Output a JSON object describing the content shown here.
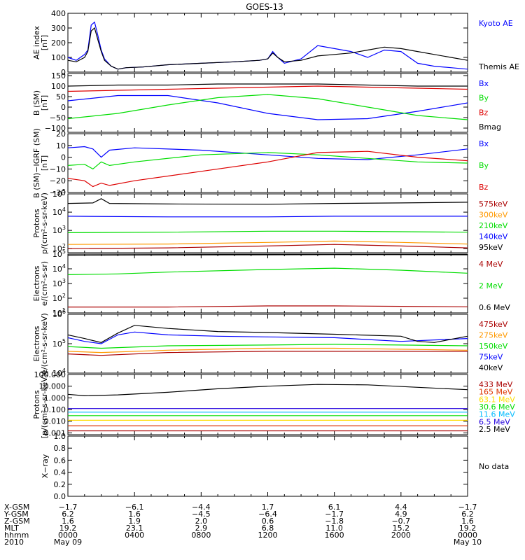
{
  "title": "GOES-13",
  "chart_data": [
    {
      "type": "line",
      "ylabel": [
        "AE index",
        "[nT]"
      ],
      "ylim": [
        0,
        400
      ],
      "yscale": "linear",
      "yticks": [
        {
          "v": 0,
          "label": "0"
        },
        {
          "v": 100,
          "label": "100"
        },
        {
          "v": 200,
          "label": "200"
        },
        {
          "v": 300,
          "label": "300"
        },
        {
          "v": 400,
          "label": "400"
        }
      ],
      "series": [
        {
          "name": "Kyoto AE",
          "color": "#0000ff",
          "x": [
            0,
            0.5,
            1,
            1.2,
            1.4,
            1.6,
            1.8,
            2.0,
            2.2,
            2.6,
            3.0,
            3.5,
            4.5,
            6,
            8,
            10,
            11.5,
            12,
            12.3,
            12.6,
            13,
            14,
            15,
            16,
            17,
            18,
            19,
            20,
            21,
            22,
            23,
            24
          ],
          "y": [
            100,
            80,
            120,
            150,
            320,
            340,
            250,
            150,
            90,
            40,
            20,
            30,
            35,
            50,
            60,
            70,
            80,
            90,
            140,
            100,
            60,
            90,
            180,
            160,
            140,
            100,
            150,
            140,
            60,
            40,
            30,
            20
          ]
        },
        {
          "name": "Themis AE",
          "color": "#000000",
          "x": [
            0,
            0.5,
            1,
            1.2,
            1.4,
            1.6,
            1.8,
            2.0,
            2.2,
            2.6,
            3.0,
            3.5,
            4.5,
            6,
            8,
            10,
            11.5,
            12,
            12.3,
            12.6,
            13,
            14,
            15,
            16,
            17,
            18,
            19,
            20,
            21,
            22,
            23,
            24
          ],
          "y": [
            80,
            70,
            100,
            140,
            280,
            300,
            220,
            140,
            80,
            40,
            20,
            30,
            35,
            50,
            60,
            70,
            80,
            90,
            130,
            100,
            70,
            80,
            110,
            120,
            130,
            150,
            170,
            160,
            140,
            120,
            100,
            80
          ]
        }
      ]
    },
    {
      "type": "line",
      "ylabel": [
        "B (SM)",
        "[nT]"
      ],
      "ylim": [
        -120,
        160
      ],
      "yscale": "linear",
      "yticks": [
        {
          "v": -100,
          "label": "−100"
        },
        {
          "v": -50,
          "label": "−50"
        },
        {
          "v": 0,
          "label": "0"
        },
        {
          "v": 50,
          "label": "50"
        },
        {
          "v": 100,
          "label": "100"
        },
        {
          "v": 150,
          "label": "150"
        }
      ],
      "series": [
        {
          "name": "Bx",
          "color": "#0000ff",
          "x": [
            0,
            3,
            6,
            9,
            12,
            15,
            18,
            21,
            24
          ],
          "y": [
            30,
            55,
            55,
            20,
            -30,
            -60,
            -55,
            -20,
            20
          ]
        },
        {
          "name": "By",
          "color": "#00dd00",
          "x": [
            0,
            3,
            6,
            9,
            12,
            15,
            18,
            21,
            24
          ],
          "y": [
            -55,
            -30,
            10,
            45,
            60,
            40,
            0,
            -40,
            -60
          ]
        },
        {
          "name": "Bz",
          "color": "#dd0000",
          "x": [
            0,
            3,
            6,
            9,
            12,
            15,
            18,
            21,
            24
          ],
          "y": [
            75,
            80,
            85,
            90,
            95,
            100,
            95,
            90,
            85
          ]
        },
        {
          "name": "Bmag",
          "color": "#000000",
          "x": [
            0,
            3,
            6,
            9,
            12,
            15,
            18,
            21,
            24
          ],
          "y": [
            100,
            105,
            105,
            110,
            110,
            110,
            105,
            100,
            100
          ]
        }
      ]
    },
    {
      "type": "line",
      "ylabel": [
        "B (SM)−IGRF (SM)",
        "[nT]"
      ],
      "ylim": [
        -30,
        20
      ],
      "yscale": "linear",
      "yticks": [
        {
          "v": -30,
          "label": "−30"
        },
        {
          "v": -20,
          "label": "−20"
        },
        {
          "v": -10,
          "label": "−10"
        },
        {
          "v": 0,
          "label": "0"
        },
        {
          "v": 10,
          "label": "10"
        },
        {
          "v": 20,
          "label": "20"
        }
      ],
      "series": [
        {
          "name": "Bx",
          "color": "#0000ff",
          "x": [
            0,
            1,
            1.5,
            2,
            2.5,
            4,
            8,
            12,
            15,
            18,
            21,
            24
          ],
          "y": [
            8,
            9,
            7,
            0,
            6,
            8,
            6,
            2,
            -1,
            -2,
            2,
            7
          ]
        },
        {
          "name": "By",
          "color": "#00dd00",
          "x": [
            0,
            1,
            1.5,
            2,
            2.5,
            4,
            8,
            12,
            15,
            18,
            21,
            24
          ],
          "y": [
            -7,
            -6,
            -10,
            -4,
            -7,
            -4,
            2,
            4,
            2,
            -1,
            -4,
            -5
          ]
        },
        {
          "name": "Bz",
          "color": "#dd0000",
          "x": [
            0,
            1,
            1.5,
            2,
            2.5,
            4,
            8,
            12,
            15,
            18,
            21,
            24
          ],
          "y": [
            -18,
            -20,
            -25,
            -22,
            -24,
            -20,
            -12,
            -4,
            4,
            5,
            0,
            -3
          ]
        }
      ]
    },
    {
      "type": "line",
      "ylabel": [
        "Protons",
        "p/(cm²-s-sr-keV)"
      ],
      "ylim": [
        60,
        100000
      ],
      "yscale": "log",
      "yticks": [
        {
          "v": 100,
          "label": "10",
          "exp": "2"
        },
        {
          "v": 1000,
          "label": "10",
          "exp": "3"
        },
        {
          "v": 10000,
          "label": "10",
          "exp": "4"
        },
        {
          "v": 100000,
          "label": "10",
          "exp": "5"
        }
      ],
      "series": [
        {
          "name": "575keV",
          "color": "#aa0000",
          "x": [
            0,
            6,
            12,
            16,
            20,
            24
          ],
          "y": [
            100,
            110,
            140,
            170,
            140,
            110
          ]
        },
        {
          "name": "300keV",
          "color": "#ff9900",
          "x": [
            0,
            6,
            12,
            16,
            20,
            24
          ],
          "y": [
            170,
            180,
            220,
            260,
            220,
            180
          ]
        },
        {
          "name": "210keV",
          "color": "#00dd00",
          "x": [
            0,
            6,
            12,
            16,
            20,
            24
          ],
          "y": [
            750,
            800,
            900,
            900,
            850,
            800
          ]
        },
        {
          "name": "140keV",
          "color": "#0000ff",
          "x": [
            0,
            6,
            12,
            16,
            20,
            24
          ],
          "y": [
            6000,
            5500,
            5500,
            6000,
            6000,
            6000
          ]
        },
        {
          "name": "95keV",
          "color": "#000000",
          "x": [
            0,
            1.5,
            2,
            2.5,
            6,
            12,
            16,
            20,
            24
          ],
          "y": [
            30000,
            32000,
            55000,
            30000,
            28000,
            27000,
            30000,
            32000,
            35000
          ]
        }
      ]
    },
    {
      "type": "line",
      "ylabel": [
        "Electrons",
        "e/(cm²-s-sr)"
      ],
      "ylim": [
        10,
        100000
      ],
      "yscale": "log",
      "yticks": [
        {
          "v": 10,
          "label": "10",
          "exp": "1"
        },
        {
          "v": 100,
          "label": "10",
          "exp": "2"
        },
        {
          "v": 1000,
          "label": "10",
          "exp": "3"
        },
        {
          "v": 10000,
          "label": "10",
          "exp": "4"
        },
        {
          "v": 100000,
          "label": "10",
          "exp": "5"
        }
      ],
      "series": [
        {
          "name": "4 MeV",
          "color": "#aa0000",
          "x": [
            0,
            6,
            12,
            16,
            20,
            24
          ],
          "y": [
            25,
            25,
            30,
            30,
            28,
            26
          ]
        },
        {
          "name": "2 MeV",
          "color": "#00dd00",
          "x": [
            0,
            3,
            6,
            12,
            16,
            20,
            24
          ],
          "y": [
            4000,
            4500,
            6000,
            9000,
            11000,
            8000,
            5000
          ]
        },
        {
          "name": "0.6 MeV",
          "color": "#000000",
          "x": [
            0,
            6,
            12,
            16,
            20,
            24
          ],
          "y": [
            85000,
            88000,
            90000,
            92000,
            92000,
            90000
          ]
        }
      ]
    },
    {
      "type": "line",
      "ylabel": [
        "Electrons",
        "e/(cm²-s-sr-keV)"
      ],
      "ylim": [
        10000,
        1000000
      ],
      "yscale": "log",
      "yticks": [
        {
          "v": 10000,
          "label": "10",
          "exp": "4"
        },
        {
          "v": 100000,
          "label": "10",
          "exp": "5"
        },
        {
          "v": 1000000,
          "label": "10",
          "exp": "6"
        }
      ],
      "series": [
        {
          "name": "475keV",
          "color": "#aa0000",
          "x": [
            0,
            2,
            6,
            12,
            16,
            20,
            24
          ],
          "y": [
            45000,
            40000,
            50000,
            55000,
            55000,
            55000,
            55000
          ]
        },
        {
          "name": "275keV",
          "color": "#ff9900",
          "x": [
            0,
            2,
            6,
            12,
            16,
            20,
            24
          ],
          "y": [
            55000,
            50000,
            60000,
            70000,
            70000,
            65000,
            60000
          ]
        },
        {
          "name": "150keV",
          "color": "#00dd00",
          "x": [
            0,
            2,
            6,
            12,
            16,
            20,
            24
          ],
          "y": [
            80000,
            70000,
            85000,
            90000,
            95000,
            90000,
            85000
          ]
        },
        {
          "name": "75keV",
          "color": "#0000ff",
          "x": [
            0,
            1,
            2,
            3,
            4,
            6,
            9,
            12,
            16,
            20,
            24
          ],
          "y": [
            160000,
            120000,
            100000,
            200000,
            250000,
            200000,
            180000,
            170000,
            160000,
            120000,
            150000
          ]
        },
        {
          "name": "40keV",
          "color": "#000000",
          "x": [
            0,
            1,
            2,
            3,
            4,
            6,
            9,
            12,
            16,
            20,
            21,
            22,
            24
          ],
          "y": [
            200000,
            150000,
            110000,
            230000,
            420000,
            330000,
            260000,
            240000,
            210000,
            180000,
            120000,
            110000,
            180000
          ]
        }
      ]
    },
    {
      "type": "line",
      "ylabel": [
        "Protons",
        "[p/(cm²-s-sr-keV)]"
      ],
      "ylim": [
        0.0007,
        100
      ],
      "yscale": "log",
      "yticks": [
        {
          "v": 0.001,
          "label": "0.001"
        },
        {
          "v": 0.01,
          "label": "0.010"
        },
        {
          "v": 0.1,
          "label": "0.100"
        },
        {
          "v": 1,
          "label": "1.000"
        },
        {
          "v": 10,
          "label": "10.000"
        },
        {
          "v": 100,
          "label": "100.000"
        }
      ],
      "series": [
        {
          "name": "433 MeV",
          "color": "#aa0000",
          "x": [
            0,
            6,
            12,
            18,
            24
          ],
          "y": [
            0.0015,
            0.0015,
            0.0015,
            0.0015,
            0.0015
          ]
        },
        {
          "name": "165 MeV",
          "color": "#dd3300",
          "x": [
            0,
            6,
            12,
            18,
            24
          ],
          "y": [
            0.004,
            0.004,
            0.004,
            0.004,
            0.004
          ]
        },
        {
          "name": "63.1 MeV",
          "color": "#ffdd00",
          "x": [
            0,
            6,
            12,
            18,
            24
          ],
          "y": [
            0.012,
            0.012,
            0.012,
            0.012,
            0.012
          ]
        },
        {
          "name": "30.6 MeV",
          "color": "#00dd00",
          "x": [
            0,
            6,
            12,
            18,
            24
          ],
          "y": [
            0.03,
            0.03,
            0.03,
            0.03,
            0.03
          ]
        },
        {
          "name": "11.6 MeV",
          "color": "#00bbff",
          "x": [
            0,
            6,
            12,
            18,
            24
          ],
          "y": [
            0.06,
            0.06,
            0.06,
            0.06,
            0.06
          ]
        },
        {
          "name": "6.5 MeV",
          "color": "#2200dd",
          "x": [
            0,
            6,
            12,
            18,
            24
          ],
          "y": [
            0.12,
            0.12,
            0.12,
            0.12,
            0.12
          ]
        },
        {
          "name": "2.5 MeV",
          "color": "#000000",
          "x": [
            0,
            1,
            3,
            6,
            9,
            12,
            15,
            18,
            21,
            24
          ],
          "y": [
            2,
            1.5,
            1.8,
            3,
            6,
            10,
            14,
            13,
            8,
            5
          ]
        }
      ]
    },
    {
      "type": "line",
      "ylabel": [
        "X−ray"
      ],
      "ylim": [
        0,
        1
      ],
      "yscale": "linear",
      "yticks": [
        {
          "v": 0,
          "label": "0.0"
        },
        {
          "v": 0.2,
          "label": "0.2"
        },
        {
          "v": 0.4,
          "label": "0.4"
        },
        {
          "v": 0.6,
          "label": "0.6"
        },
        {
          "v": 0.8,
          "label": "0.8"
        },
        {
          "v": 1.0,
          "label": "1.0"
        }
      ],
      "note": "No data",
      "series": []
    }
  ],
  "time_axis": {
    "xlim": [
      0,
      24
    ],
    "rows": [
      {
        "label": "X-GSM",
        "values": [
          "−1.7",
          "−6.1",
          "−4.4",
          "1.7",
          "6.1",
          "4.4",
          "−1.7"
        ]
      },
      {
        "label": "Y-GSM",
        "values": [
          "6.2",
          "1.6",
          "−4.5",
          "−6.4",
          "−1.7",
          "4.9",
          "6.2"
        ]
      },
      {
        "label": "Z-GSM",
        "values": [
          "1.6",
          "1.9",
          "2.0",
          "0.6",
          "−1.8",
          "−0.7",
          "1.6"
        ]
      },
      {
        "label": "MLT",
        "values": [
          "19.2",
          "23.1",
          "2.9",
          "6.8",
          "11.0",
          "15.2",
          "19.2"
        ]
      },
      {
        "label": "hhmm",
        "values": [
          "0000",
          "0400",
          "0800",
          "1200",
          "1600",
          "2000",
          "0000"
        ]
      },
      {
        "label": "2010",
        "values": [
          "May 09",
          "",
          "",
          "",
          "",
          "",
          "May 10"
        ]
      }
    ]
  }
}
